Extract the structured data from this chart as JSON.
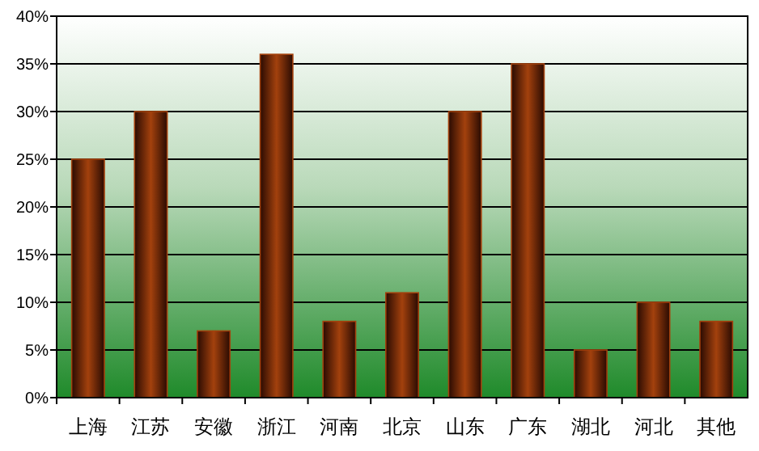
{
  "chart_data": {
    "type": "bar",
    "categories": [
      "上海",
      "江苏",
      "安徽",
      "浙江",
      "河南",
      "北京",
      "山东",
      "广东",
      "湖北",
      "河北",
      "其他"
    ],
    "values": [
      25,
      30,
      7,
      36,
      8,
      11,
      30,
      35,
      5,
      10,
      8
    ],
    "color": "#a3410d",
    "ylim": [
      0,
      40
    ],
    "yticks": [
      {
        "value": 0,
        "label": "0%"
      },
      {
        "value": 5,
        "label": "5%"
      },
      {
        "value": 10,
        "label": "10%"
      },
      {
        "value": 15,
        "label": "15%"
      },
      {
        "value": 20,
        "label": "20%"
      },
      {
        "value": 25,
        "label": "25%"
      },
      {
        "value": 30,
        "label": "30%"
      },
      {
        "value": 35,
        "label": "35%"
      },
      {
        "value": 40,
        "label": "40%"
      }
    ],
    "grid": "y"
  }
}
